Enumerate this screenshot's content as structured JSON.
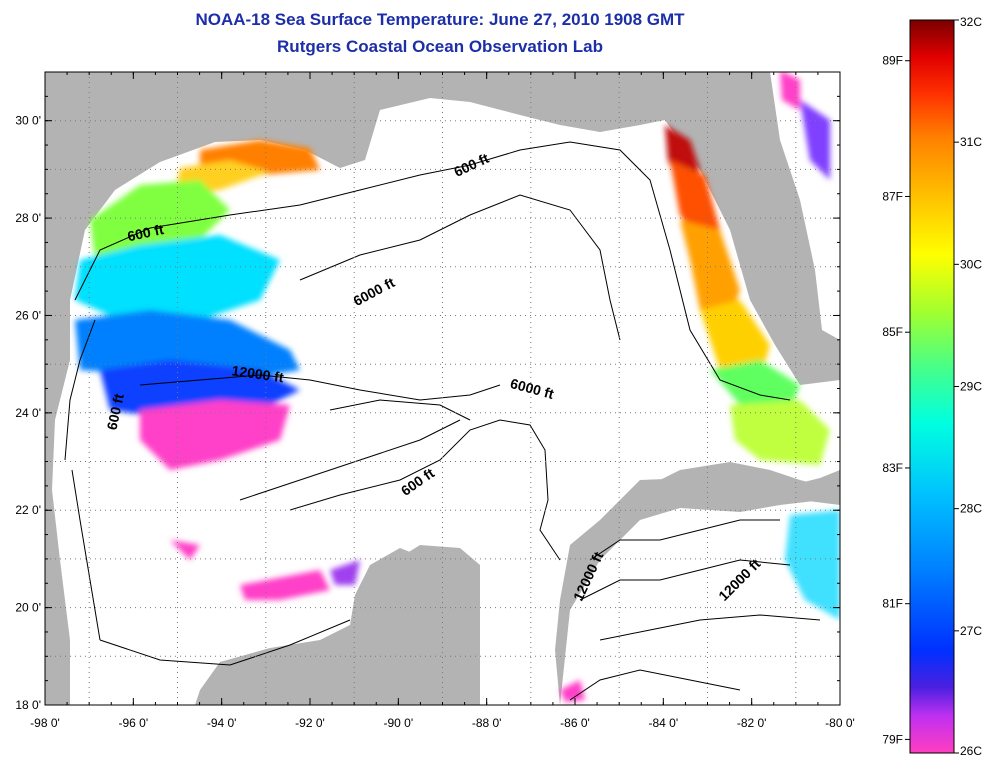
{
  "title_line1": "NOAA-18 Sea Surface Temperature:  June 27, 2010 1908 GMT",
  "title_line2": "Rutgers Coastal Ocean Observation Lab",
  "x_tick_labels": [
    "-98 0'",
    "-96 0'",
    "-94 0'",
    "-92 0'",
    "-90 0'",
    "-88 0'",
    "-86 0'",
    "-84 0'",
    "-82 0'",
    "-80 0'"
  ],
  "y_tick_labels": [
    "30 0'",
    "28 0'",
    "26 0'",
    "24 0'",
    "22 0'",
    "20 0'",
    "18 0'"
  ],
  "lon_range": [
    -98,
    -80
  ],
  "lat_range": [
    18,
    31
  ],
  "contour_labels": [
    {
      "text": "600 ft",
      "lon": -95.7,
      "lat": 27.6,
      "angle": -12
    },
    {
      "text": "600 ft",
      "lon": -88.3,
      "lat": 29.0,
      "angle": -25
    },
    {
      "text": "6000 ft",
      "lon": -90.5,
      "lat": 26.4,
      "angle": -28
    },
    {
      "text": "12000 ft",
      "lon": -93.2,
      "lat": 24.7,
      "angle": 8
    },
    {
      "text": "6000 ft",
      "lon": -87.0,
      "lat": 24.4,
      "angle": 15
    },
    {
      "text": "600 ft",
      "lon": -96.3,
      "lat": 24.0,
      "angle": -78
    },
    {
      "text": "600 ft",
      "lon": -89.5,
      "lat": 22.5,
      "angle": -35
    },
    {
      "text": "12000 ft",
      "lon": -85.6,
      "lat": 20.6,
      "angle": -65
    },
    {
      "text": "12000 ft",
      "lon": -82.2,
      "lat": 20.5,
      "angle": -45
    }
  ],
  "colorbar": {
    "celsius_labels": [
      "32C",
      "31C",
      "30C",
      "29C",
      "28C",
      "27C",
      "26C"
    ],
    "fahrenheit_labels": [
      "89F",
      "87F",
      "85F",
      "83F",
      "81F",
      "79F"
    ],
    "celsius_range": [
      26,
      32
    ],
    "colors": [
      "#ff3ec0",
      "#c030f0",
      "#4a20e0",
      "#0030ff",
      "#0080ff",
      "#00c0ff",
      "#00ffe0",
      "#40ff90",
      "#a0ff30",
      "#ffff00",
      "#ffc000",
      "#ff8000",
      "#ff3000",
      "#e00000",
      "#7a0000"
    ]
  },
  "colors": {
    "land": "#b3b3b3",
    "ocean": "#ffffff",
    "title": "#1c2fa8"
  }
}
